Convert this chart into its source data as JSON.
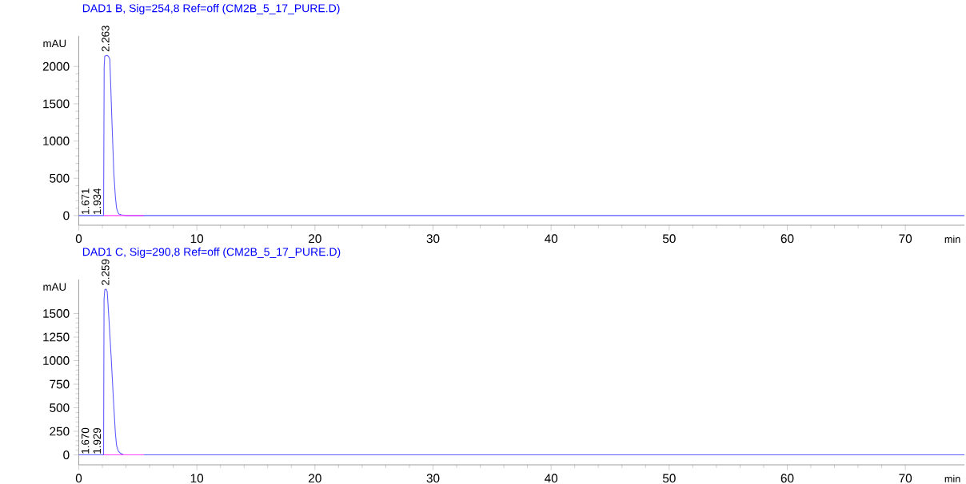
{
  "chart_data": [
    {
      "type": "line",
      "title": "DAD1 B, Sig=254,8 Ref=off (CM2B_5_17_PURE.D)",
      "xlabel": "min",
      "ylabel": "mAU",
      "xlim": [
        0,
        75
      ],
      "ylim": [
        -130,
        2410
      ],
      "xticks": [
        0,
        10,
        20,
        30,
        40,
        50,
        60,
        70
      ],
      "yticks": [
        0,
        500,
        1000,
        1500,
        2000
      ],
      "series": [
        {
          "color": "#5a5aff",
          "x": [
            0,
            1.6,
            1.67,
            1.75,
            1.93,
            2.1,
            2.15,
            2.2,
            2.38,
            2.5,
            2.63,
            2.8,
            2.97,
            3.1,
            3.2,
            3.3,
            3.4,
            3.6,
            4.0,
            5.0,
            75
          ],
          "values": [
            0,
            0,
            0,
            0,
            0,
            0,
            2000,
            2140,
            2150,
            2140,
            2100,
            1300,
            560,
            250,
            100,
            50,
            20,
            10,
            0,
            0,
            0
          ]
        },
        {
          "color": "#ff40ff",
          "x": [
            2.1,
            5.5
          ],
          "values": [
            0,
            0
          ]
        }
      ],
      "annotations": [
        {
          "text": "2.263",
          "x": 2.263,
          "y": 2150
        },
        {
          "text": "1.671",
          "x": 1.671,
          "y": 0
        },
        {
          "text": "1.934",
          "x": 1.934,
          "y": 0
        }
      ]
    },
    {
      "type": "line",
      "title": "DAD1 C, Sig=290,8 Ref=off (CM2B_5_17_PURE.D)",
      "xlabel": "min",
      "ylabel": "mAU",
      "xlim": [
        0,
        75
      ],
      "ylim": [
        -105,
        1860
      ],
      "xticks": [
        0,
        10,
        20,
        30,
        40,
        50,
        60,
        70
      ],
      "yticks": [
        0,
        250,
        500,
        750,
        1000,
        1250,
        1500
      ],
      "series": [
        {
          "color": "#5a5aff",
          "x": [
            0,
            1.6,
            1.67,
            1.75,
            1.93,
            2.1,
            2.14,
            2.2,
            2.3,
            2.41,
            2.55,
            2.75,
            2.95,
            3.1,
            3.2,
            3.35,
            3.5,
            3.8,
            4.5,
            75
          ],
          "values": [
            0,
            0,
            0,
            0,
            0,
            0,
            1650,
            1750,
            1760,
            1730,
            1450,
            1020,
            550,
            230,
            100,
            40,
            20,
            0,
            0,
            0
          ]
        },
        {
          "color": "#ff40ff",
          "x": [
            2.1,
            5.5
          ],
          "values": [
            0,
            0
          ]
        }
      ],
      "annotations": [
        {
          "text": "2.259",
          "x": 2.259,
          "y": 1760
        },
        {
          "text": "1.670",
          "x": 1.67,
          "y": 0
        },
        {
          "text": "1.929",
          "x": 1.929,
          "y": 0
        }
      ]
    }
  ]
}
